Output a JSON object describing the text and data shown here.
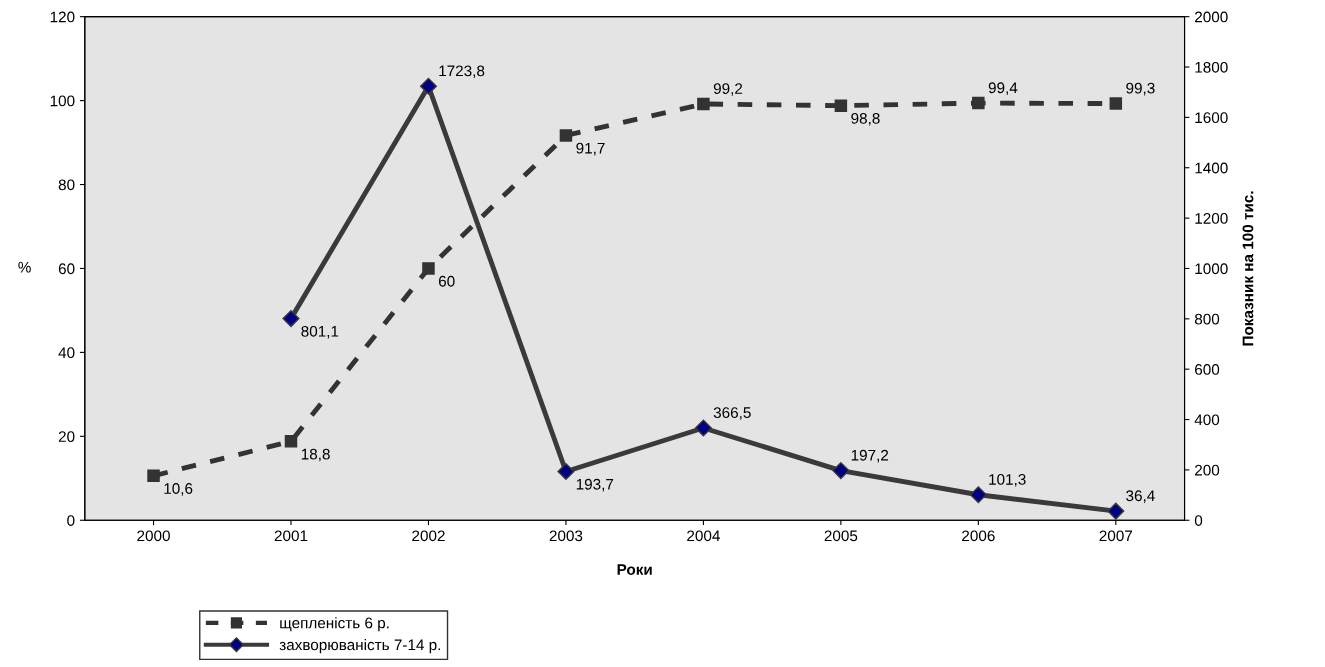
{
  "chart_data": {
    "type": "line",
    "categories": [
      "2000",
      "2001",
      "2002",
      "2003",
      "2004",
      "2005",
      "2006",
      "2007"
    ],
    "xlabel": "Роки",
    "ylabel": "%",
    "y2label": "Показник на 100 тис.",
    "ylim": [
      0,
      120
    ],
    "yticks": [
      0,
      20,
      40,
      60,
      80,
      100,
      120
    ],
    "y2lim": [
      0,
      2000
    ],
    "y2ticks": [
      0,
      200,
      400,
      600,
      800,
      1000,
      1200,
      1400,
      1600,
      1800,
      2000
    ],
    "grid": false,
    "legend": "bottom left",
    "series": [
      {
        "name": "щепленість 6 р.",
        "color": "#333333",
        "marker": "square",
        "line_style": "dashed",
        "values": [
          10.6,
          18.8,
          60,
          91.7,
          99.2,
          98.8,
          99.4,
          99.3
        ],
        "value_labels": [
          "10,6",
          "18,8",
          "60",
          "91,7",
          "99,2",
          "98,8",
          "99,4",
          "99,3"
        ]
      },
      {
        "name": "захворюваність 7-14 р.",
        "color": "#3a3a3a",
        "marker": "diamond",
        "line_style": "solid",
        "axis": "y2",
        "values": [
          null,
          801.1,
          1723.8,
          193.7,
          366.5,
          197.2,
          101.3,
          36.4
        ],
        "value_labels": [
          null,
          "801,1",
          "1723,8",
          "193,7",
          "366,5",
          "197,2",
          "101,3",
          "36,4"
        ]
      }
    ]
  }
}
